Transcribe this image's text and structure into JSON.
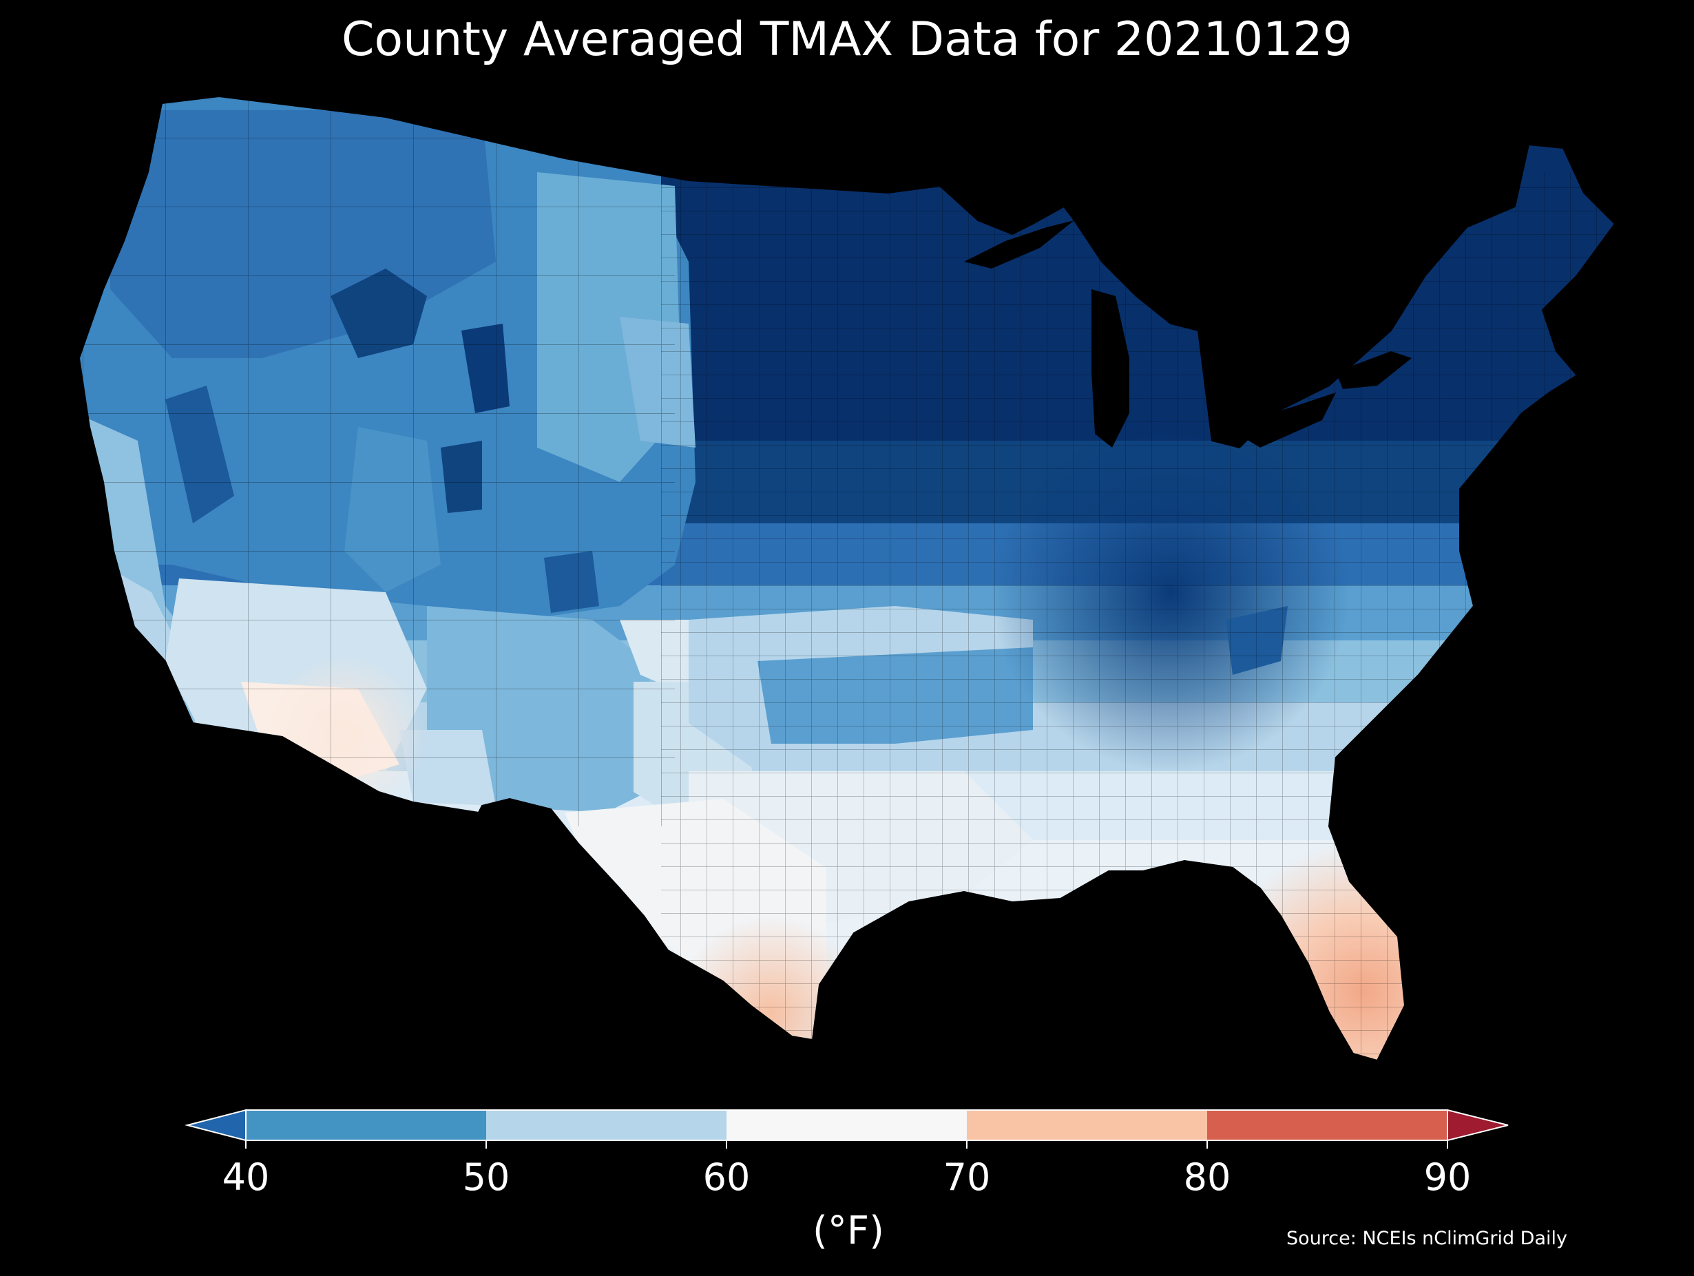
{
  "title": "County Averaged TMAX Data for 20210129",
  "colorbar": {
    "unit_label": "(°F)",
    "ticks": [
      "40",
      "50",
      "60",
      "70",
      "80",
      "90"
    ],
    "bins": [
      {
        "range": "<40",
        "color": "#2166ac"
      },
      {
        "range": "40-50",
        "color": "#4393c3"
      },
      {
        "range": "50-60",
        "color": "#b5d6ea"
      },
      {
        "range": "60-70",
        "color": "#f7f7f7"
      },
      {
        "range": "70-80",
        "color": "#f9c3a6"
      },
      {
        "range": "80-90",
        "color": "#d6604d"
      },
      {
        "range": ">90",
        "color": "#9e1b30"
      }
    ]
  },
  "source": "Source: NCEIs nClimGrid Daily",
  "map": {
    "region": "Contiguous United States",
    "variable": "TMAX",
    "date": "20210129",
    "palette": {
      "very_cold": "#08306b",
      "cold": "#1c5a9c",
      "cool": "#3c86c1",
      "mild_cool": "#6aaed6",
      "light": "#b6d5ea",
      "near_white": "#e6eff6",
      "white": "#f5f5f5",
      "warm_light": "#fbe0d2",
      "warm": "#f3b496"
    }
  }
}
